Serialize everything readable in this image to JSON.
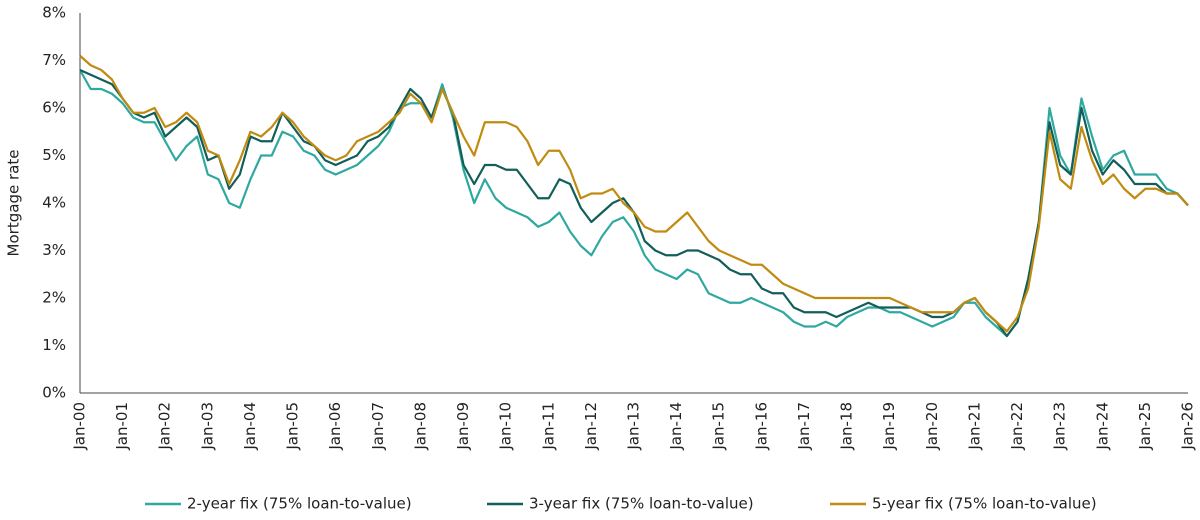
{
  "chart_data": {
    "type": "line",
    "y_label": "Mortgage rate",
    "categories": [
      "Jan-00",
      null,
      null,
      null,
      "Jan-01",
      null,
      null,
      null,
      "Jan-02",
      null,
      null,
      null,
      "Jan-03",
      null,
      null,
      null,
      "Jan-04",
      null,
      null,
      null,
      "Jan-05",
      null,
      null,
      null,
      "Jan-06",
      null,
      null,
      null,
      "Jan-07",
      null,
      null,
      null,
      "Jan-08",
      null,
      null,
      null,
      "Jan-09",
      null,
      null,
      null,
      "Jan-10",
      null,
      null,
      null,
      "Jan-11",
      null,
      null,
      null,
      "Jan-12",
      null,
      null,
      null,
      "Jan-13",
      null,
      null,
      null,
      "Jan-14",
      null,
      null,
      null,
      "Jan-15",
      null,
      null,
      null,
      "Jan-16",
      null,
      null,
      null,
      "Jan-17",
      null,
      null,
      null,
      "Jan-18",
      null,
      null,
      null,
      "Jan-19",
      null,
      null,
      null,
      "Jan-20",
      null,
      null,
      null,
      "Jan-21",
      null,
      null,
      null,
      "Jan-22",
      null,
      null,
      null,
      "Jan-23",
      null,
      null,
      null,
      "Jan-24",
      null,
      null,
      null,
      "Jan-25",
      null,
      null,
      null,
      "Jan-26"
    ],
    "series": [
      {
        "name": "2-year fix (75% loan-to-value)",
        "color": "#2fa9a0",
        "values": [
          6.8,
          6.4,
          6.4,
          6.3,
          6.1,
          5.8,
          5.7,
          5.7,
          5.3,
          4.9,
          5.2,
          5.4,
          4.6,
          4.5,
          4.0,
          3.9,
          4.5,
          5.0,
          5.0,
          5.5,
          5.4,
          5.1,
          5.0,
          4.7,
          4.6,
          4.7,
          4.8,
          5.0,
          5.2,
          5.5,
          6.0,
          6.1,
          6.1,
          5.8,
          6.5,
          5.8,
          4.7,
          4.0,
          4.5,
          4.1,
          3.9,
          3.8,
          3.7,
          3.5,
          3.6,
          3.8,
          3.4,
          3.1,
          2.9,
          3.3,
          3.6,
          3.7,
          3.4,
          2.9,
          2.6,
          2.5,
          2.4,
          2.6,
          2.5,
          2.1,
          2.0,
          1.9,
          1.9,
          2.0,
          1.9,
          1.8,
          1.7,
          1.5,
          1.4,
          1.4,
          1.5,
          1.4,
          1.6,
          1.7,
          1.8,
          1.8,
          1.7,
          1.7,
          1.6,
          1.5,
          1.4,
          1.5,
          1.6,
          1.9,
          1.9,
          1.6,
          1.4,
          1.2,
          1.5,
          2.4,
          3.6,
          6.0,
          5.0,
          4.6,
          6.2,
          5.4,
          4.7,
          5.0,
          5.1,
          4.6,
          4.6,
          4.6,
          4.3,
          4.2,
          3.95
        ]
      },
      {
        "name": "3-year fix (75% loan-to-value)",
        "color": "#125e59",
        "values": [
          6.8,
          6.7,
          6.6,
          6.5,
          6.2,
          5.9,
          5.8,
          5.9,
          5.4,
          5.6,
          5.8,
          5.6,
          4.9,
          5.0,
          4.3,
          4.6,
          5.4,
          5.3,
          5.3,
          5.9,
          5.6,
          5.3,
          5.2,
          4.9,
          4.8,
          4.9,
          5.0,
          5.3,
          5.4,
          5.6,
          6.0,
          6.4,
          6.2,
          5.8,
          6.4,
          5.9,
          4.8,
          4.4,
          4.8,
          4.8,
          4.7,
          4.7,
          4.4,
          4.1,
          4.1,
          4.5,
          4.4,
          3.9,
          3.6,
          3.8,
          4.0,
          4.1,
          3.8,
          3.2,
          3.0,
          2.9,
          2.9,
          3.0,
          3.0,
          2.9,
          2.8,
          2.6,
          2.5,
          2.5,
          2.2,
          2.1,
          2.1,
          1.8,
          1.7,
          1.7,
          1.7,
          1.6,
          1.7,
          1.8,
          1.9,
          1.8,
          1.8,
          1.8,
          1.8,
          1.7,
          1.6,
          1.6,
          1.7,
          1.9,
          2.0,
          1.7,
          1.5,
          1.2,
          1.5,
          2.4,
          3.6,
          5.7,
          4.8,
          4.6,
          6.0,
          5.1,
          4.6,
          4.9,
          4.7,
          4.4,
          4.4,
          4.4,
          4.2,
          4.2,
          3.95
        ]
      },
      {
        "name": "5-year fix (75% loan-to-value)",
        "color": "#c08b10",
        "values": [
          7.1,
          6.9,
          6.8,
          6.6,
          6.2,
          5.9,
          5.9,
          6.0,
          5.6,
          5.7,
          5.9,
          5.7,
          5.1,
          5.0,
          4.4,
          4.9,
          5.5,
          5.4,
          5.6,
          5.9,
          5.7,
          5.4,
          5.2,
          5.0,
          4.9,
          5.0,
          5.3,
          5.4,
          5.5,
          5.7,
          5.9,
          6.3,
          6.1,
          5.7,
          6.4,
          5.9,
          5.4,
          5.0,
          5.7,
          5.7,
          5.7,
          5.6,
          5.3,
          4.8,
          5.1,
          5.1,
          4.7,
          4.1,
          4.2,
          4.2,
          4.3,
          4.0,
          3.8,
          3.5,
          3.4,
          3.4,
          3.6,
          3.8,
          3.5,
          3.2,
          3.0,
          2.9,
          2.8,
          2.7,
          2.7,
          2.5,
          2.3,
          2.2,
          2.1,
          2.0,
          2.0,
          2.0,
          2.0,
          2.0,
          2.0,
          2.0,
          2.0,
          1.9,
          1.8,
          1.7,
          1.7,
          1.7,
          1.7,
          1.9,
          2.0,
          1.7,
          1.5,
          1.3,
          1.6,
          2.2,
          3.5,
          5.5,
          4.5,
          4.3,
          5.6,
          4.9,
          4.4,
          4.6,
          4.3,
          4.1,
          4.3,
          4.3,
          4.2,
          4.2,
          3.95
        ]
      }
    ],
    "ylim": [
      0,
      8
    ],
    "yticks": [
      {
        "value": 0,
        "label": "0%"
      },
      {
        "value": 1,
        "label": "1%"
      },
      {
        "value": 2,
        "label": "2%"
      },
      {
        "value": 3,
        "label": "3%"
      },
      {
        "value": 4,
        "label": "4%"
      },
      {
        "value": 5,
        "label": "5%"
      },
      {
        "value": 6,
        "label": "6%"
      },
      {
        "value": 7,
        "label": "7%"
      },
      {
        "value": 8,
        "label": "8%"
      }
    ],
    "legend": "bottom"
  }
}
